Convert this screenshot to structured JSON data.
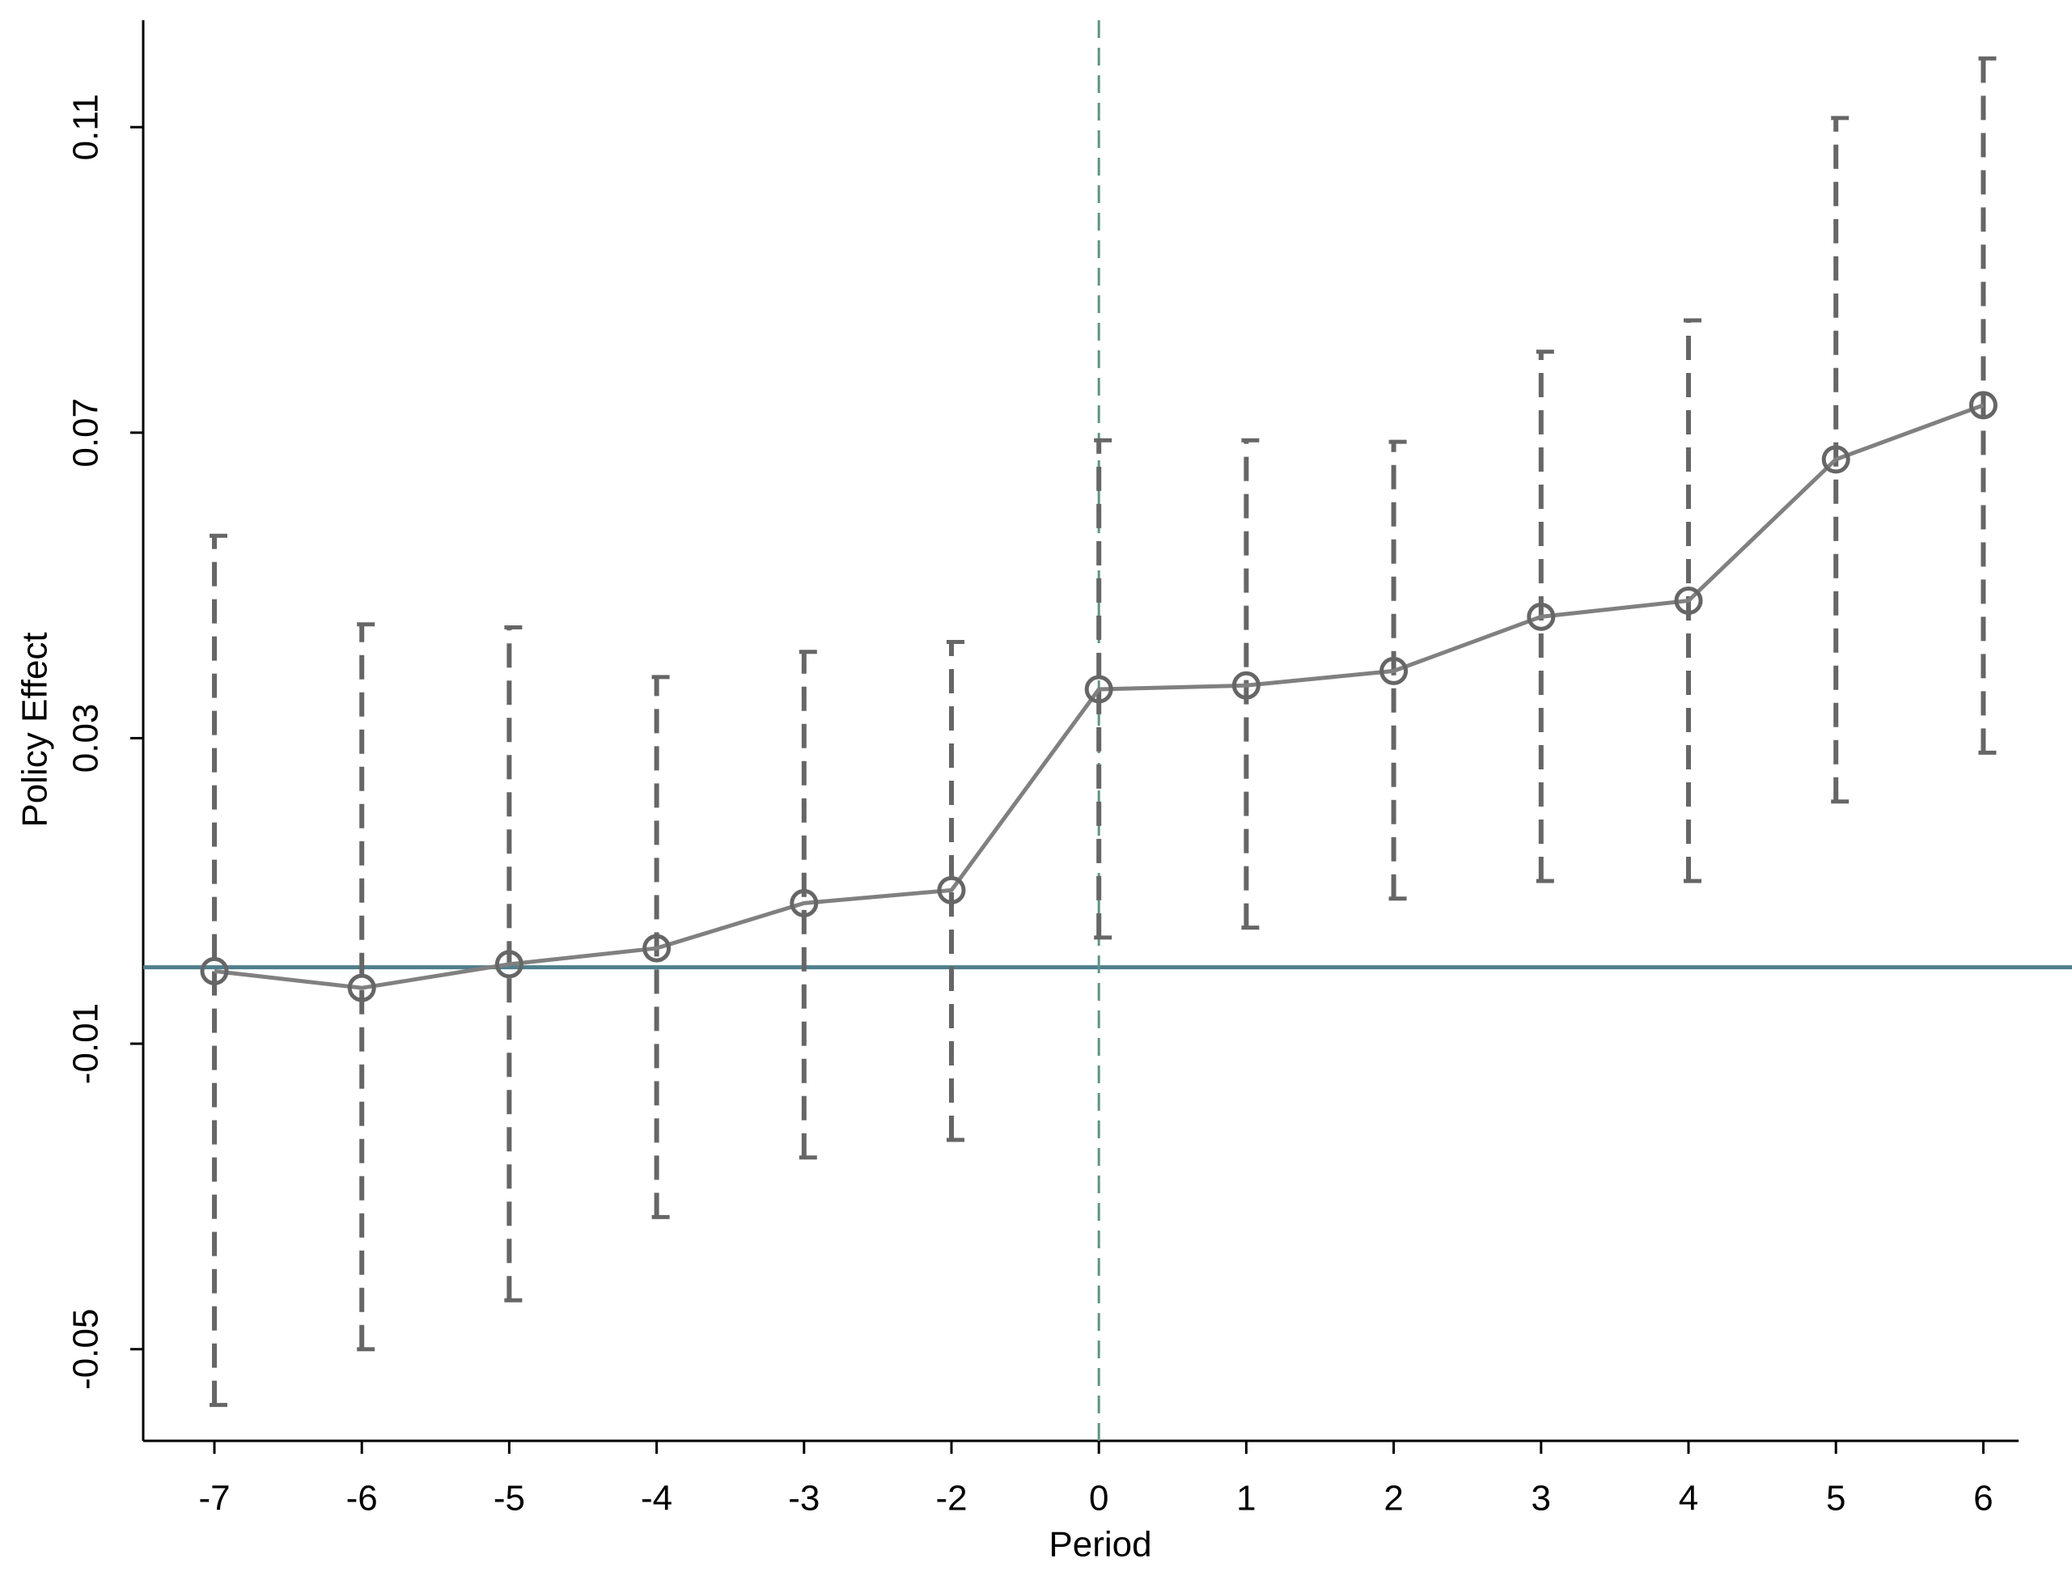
{
  "chart_data": {
    "type": "line",
    "x_label": "Period",
    "y_label": "Policy Effect",
    "categories": [
      -7,
      -6,
      -5,
      -4,
      -3,
      -2,
      0,
      1,
      2,
      3,
      4,
      5,
      6
    ],
    "series": [
      {
        "color": "#808080",
        "error_color": "#666666",
        "values": [
          -0.0005,
          -0.0027,
          0.0004,
          0.0025,
          0.0084,
          0.0101,
          0.0364,
          0.0369,
          0.0388,
          0.0459,
          0.048,
          0.0665,
          0.0736
        ],
        "ci_lower": [
          -0.0573,
          -0.05,
          -0.0436,
          -0.0327,
          -0.0249,
          -0.0226,
          0.0039,
          0.0052,
          0.009,
          0.0113,
          0.0113,
          0.0217,
          0.0281
        ],
        "ci_upper": [
          0.0565,
          0.0449,
          0.0445,
          0.038,
          0.0413,
          0.0426,
          0.069,
          0.069,
          0.0688,
          0.0806,
          0.0847,
          0.1112,
          0.119
        ]
      }
    ],
    "ylim": [
      -0.062,
      0.124
    ],
    "yticks": [
      -0.05,
      -0.01,
      0.03,
      0.07,
      0.11
    ],
    "hline": 0,
    "hline_color": "#4f7f8c",
    "vline": 0,
    "vline_color": "#5f9488"
  }
}
